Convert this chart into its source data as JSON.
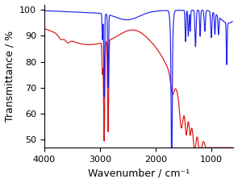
{
  "title": "",
  "xlabel": "Wavenumber / cm⁻¹",
  "ylabel": "Transmittance / %",
  "xlim": [
    4000,
    600
  ],
  "ylim": [
    47,
    102
  ],
  "yticks": [
    50,
    60,
    70,
    80,
    90,
    100
  ],
  "xticks": [
    4000,
    3000,
    2000,
    1000
  ],
  "line_colors": [
    "#dd1111",
    "#2222ee"
  ],
  "background_color": "#ffffff",
  "font_size": 9
}
